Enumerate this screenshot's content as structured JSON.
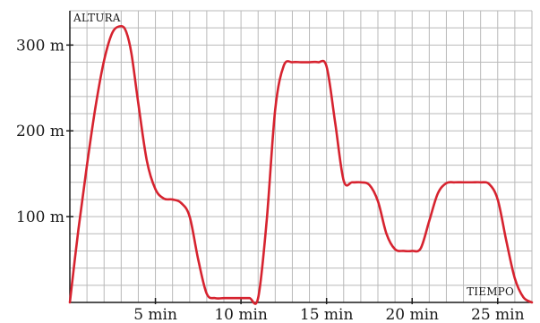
{
  "chart_data": {
    "type": "line",
    "title": "",
    "xlabel": "TIEMPO",
    "ylabel": "ALTURA",
    "xlim": [
      0,
      27
    ],
    "ylim": [
      0,
      340
    ],
    "grid": true,
    "x_ticks": [
      5,
      10,
      15,
      20,
      25
    ],
    "x_tick_labels": [
      "5 min",
      "10 min",
      "15 min",
      "20 min",
      "25 min"
    ],
    "y_ticks": [
      100,
      200,
      300
    ],
    "y_tick_labels": [
      "100 m",
      "200 m",
      "300 m"
    ],
    "series": [
      {
        "color": "#d6232f",
        "x": [
          0,
          0.5,
          1,
          1.5,
          2,
          2.5,
          3,
          3.3,
          3.6,
          4,
          4.5,
          5,
          5.5,
          6,
          6.5,
          7,
          7.5,
          8,
          8.5,
          9,
          9.5,
          10,
          10.5,
          11,
          11.5,
          12,
          12.5,
          13,
          13.5,
          14,
          14.5,
          15,
          15.5,
          16,
          16.5,
          17,
          17.5,
          18,
          18.5,
          19,
          19.5,
          20,
          20.5,
          21,
          21.5,
          22,
          22.5,
          23,
          23.5,
          24,
          24.5,
          25,
          25.5,
          26,
          26.5,
          27
        ],
        "y": [
          0,
          85,
          160,
          228,
          282,
          315,
          322,
          315,
          290,
          232,
          165,
          132,
          121,
          120,
          116,
          100,
          50,
          10,
          5,
          5,
          5,
          5,
          5,
          5,
          95,
          225,
          276,
          280,
          280,
          280,
          280,
          275,
          210,
          142,
          140,
          140,
          137,
          118,
          80,
          62,
          60,
          60,
          63,
          95,
          127,
          139,
          140,
          140,
          140,
          140,
          138,
          120,
          72,
          28,
          6,
          0
        ]
      }
    ]
  }
}
